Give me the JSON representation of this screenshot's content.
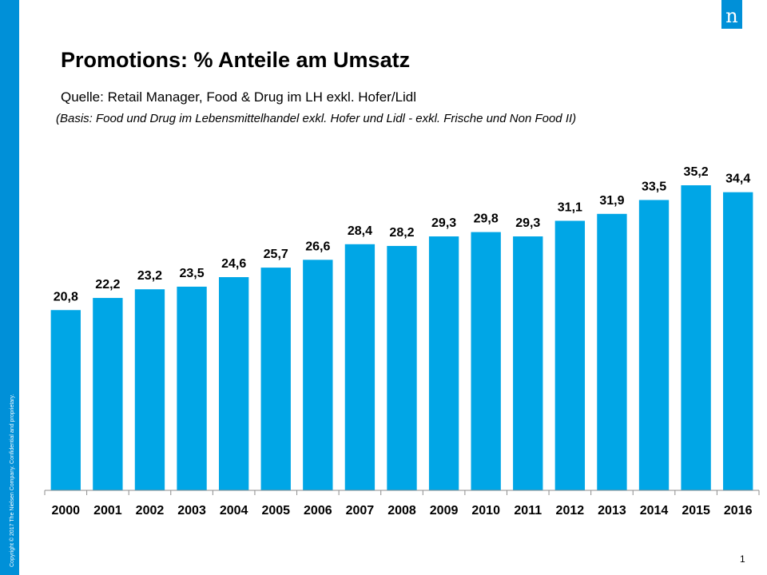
{
  "slide": {
    "title": "Promotions: % Anteile am Umsatz",
    "source": "Quelle: Retail Manager, Food & Drug im LH exkl. Hofer/Lidl",
    "basis": "(Basis: Food und Drug im Lebensmittelhandel exkl. Hofer und Lidl - exkl. Frische und Non Food II)",
    "copyright": "Copyright © 2017 The Nielsen Company. Confidential and proprietary.",
    "logo_letter": "n",
    "page_number": "1"
  },
  "colors": {
    "bar": "#00a6e6",
    "band": "#0090d8"
  },
  "chart_data": {
    "type": "bar",
    "categories": [
      "2000",
      "2001",
      "2002",
      "2003",
      "2004",
      "2005",
      "2006",
      "2007",
      "2008",
      "2009",
      "2010",
      "2011",
      "2012",
      "2013",
      "2014",
      "2015",
      "2016"
    ],
    "values": [
      20.8,
      22.2,
      23.2,
      23.5,
      24.6,
      25.7,
      26.6,
      28.4,
      28.2,
      29.3,
      29.8,
      29.3,
      31.1,
      31.9,
      33.5,
      35.2,
      34.4
    ],
    "value_labels": [
      "20,8",
      "22,2",
      "23,2",
      "23,5",
      "24,6",
      "25,7",
      "26,6",
      "28,4",
      "28,2",
      "29,3",
      "29,8",
      "29,3",
      "31,1",
      "31,9",
      "33,5",
      "35,2",
      "34,4"
    ],
    "title": "",
    "xlabel": "",
    "ylabel": "",
    "ylim": [
      0,
      35.2
    ],
    "grid": false,
    "legend": "none"
  }
}
